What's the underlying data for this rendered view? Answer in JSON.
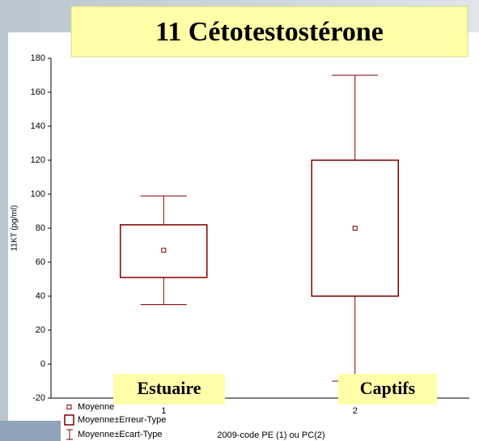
{
  "chart_data": {
    "type": "box",
    "title": "11 Cétotestostérone",
    "x_label": "2009-code PE (1) ou PC(2)",
    "y_label": "11KT (pg/ml)",
    "categories": [
      "1",
      "2"
    ],
    "mean": [
      67,
      80
    ],
    "box_low": [
      51,
      40
    ],
    "box_high": [
      82,
      120
    ],
    "whisker_low": [
      35,
      -10
    ],
    "whisker_high": [
      99,
      170
    ],
    "color": "#800000",
    "ylim": [
      -20,
      180
    ],
    "yticks": [
      -20,
      0,
      20,
      40,
      60,
      80,
      100,
      120,
      140,
      160,
      180
    ],
    "legend": [
      "Moyenne",
      "Moyenne±Erreur-Type",
      "Moyenne±Ecart-Type"
    ],
    "annotations": [
      "Estuaire",
      "Captifs"
    ]
  }
}
